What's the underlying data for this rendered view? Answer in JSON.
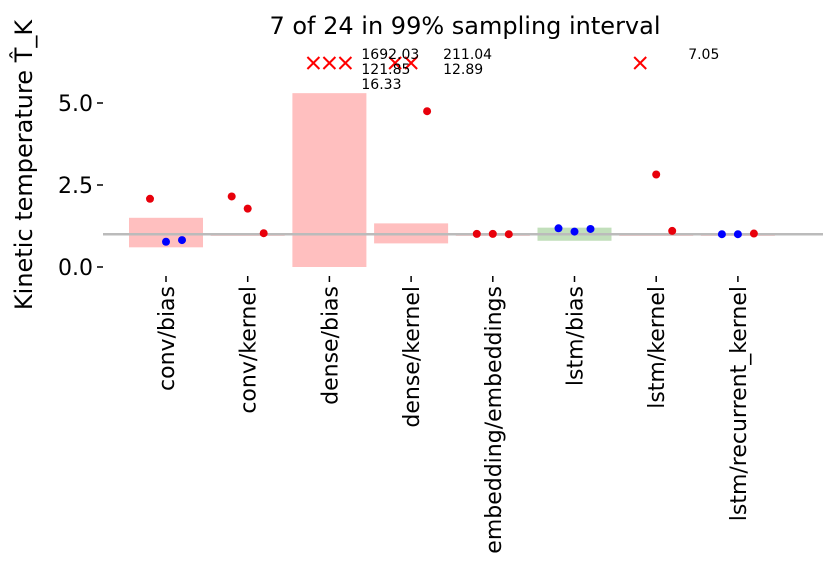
{
  "chart_data": {
    "type": "scatter",
    "title": "7 of 24 in 99% sampling interval",
    "ylabel": "Kinetic temperature T̂_K",
    "ylim": [
      0,
      5.3
    ],
    "yticks": [
      0.0,
      2.5,
      5.0
    ],
    "ytick_labels": [
      "0.0",
      "2.5",
      "5.0"
    ],
    "reference_line": 1.0,
    "categories": [
      "conv/bias",
      "conv/kernel",
      "dense/bias",
      "dense/kernel",
      "embedding/embeddings",
      "lstm/bias",
      "lstm/kernel",
      "lstm/recurrent_kernel"
    ],
    "intervals": [
      {
        "low": 0.6,
        "high": 1.5,
        "color": "#ffbfbf"
      },
      {
        "low": 0.99,
        "high": 1.01,
        "color": "#ffbfbf"
      },
      {
        "low": 0.0,
        "high": 5.3,
        "color": "#ffbfbf"
      },
      {
        "low": 0.72,
        "high": 1.33,
        "color": "#ffbfbf"
      },
      {
        "low": 0.99,
        "high": 1.01,
        "color": "#ffbfbf"
      },
      {
        "low": 0.8,
        "high": 1.2,
        "color": "#c2dfbb"
      },
      {
        "low": 0.99,
        "high": 1.01,
        "color": "#ffbfbf"
      },
      {
        "low": 0.99,
        "high": 1.01,
        "color": "#ffbfbf"
      }
    ],
    "points": [
      [
        {
          "y": 2.08,
          "in_interval": false
        },
        {
          "y": 0.77,
          "in_interval": true
        },
        {
          "y": 0.82,
          "in_interval": true
        }
      ],
      [
        {
          "y": 2.15,
          "in_interval": false
        },
        {
          "y": 1.78,
          "in_interval": false
        },
        {
          "y": 1.03,
          "in_interval": false
        }
      ],
      [
        {
          "y": 1692.03,
          "in_interval": false,
          "clipped": true
        },
        {
          "y": 121.85,
          "in_interval": false,
          "clipped": true
        },
        {
          "y": 16.33,
          "in_interval": false,
          "clipped": true
        }
      ],
      [
        {
          "y": 211.04,
          "in_interval": false,
          "clipped": true
        },
        {
          "y": 12.89,
          "in_interval": false,
          "clipped": true
        },
        {
          "y": 4.75,
          "in_interval": false
        }
      ],
      [
        {
          "y": 1.01,
          "in_interval": false
        },
        {
          "y": 1.01,
          "in_interval": false
        },
        {
          "y": 1.0,
          "in_interval": false
        }
      ],
      [
        {
          "y": 1.18,
          "in_interval": true
        },
        {
          "y": 1.08,
          "in_interval": true
        },
        {
          "y": 1.16,
          "in_interval": true
        }
      ],
      [
        {
          "y": 7.05,
          "in_interval": false,
          "clipped": true
        },
        {
          "y": 2.82,
          "in_interval": false
        },
        {
          "y": 1.1,
          "in_interval": false
        }
      ],
      [
        {
          "y": 1.0,
          "in_interval": true
        },
        {
          "y": 1.0,
          "in_interval": true
        },
        {
          "y": 1.02,
          "in_interval": false
        }
      ]
    ],
    "clipped_labels": [
      {
        "category": 2,
        "lines": [
          "1692.03",
          "121.85",
          "16.33"
        ]
      },
      {
        "category": 3,
        "lines": [
          "211.04",
          "12.89"
        ]
      },
      {
        "category": 6,
        "lines": [
          "7.05"
        ]
      }
    ],
    "colors": {
      "outside": "#e8000b",
      "inside": "#0000ff",
      "clipped_marker": "#ff0000",
      "reference_line": "#bbbbbb"
    }
  }
}
